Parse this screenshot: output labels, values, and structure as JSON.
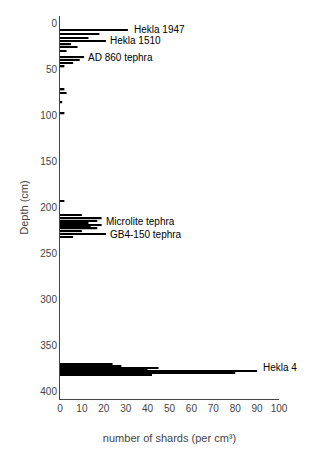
{
  "chart_data": {
    "type": "bar",
    "orientation": "horizontal",
    "xlabel": "number of shards (per cm³)",
    "ylabel": "Depth (cm)",
    "x": [
      7,
      12,
      16,
      19,
      23,
      26,
      30,
      37,
      40,
      43,
      47,
      72,
      76,
      86,
      98,
      193,
      208,
      212,
      215,
      217,
      219,
      221,
      223,
      226,
      229,
      232,
      370,
      372,
      374,
      376,
      378,
      380,
      382
    ],
    "values": [
      31,
      18,
      13,
      21,
      5,
      8,
      3,
      11,
      9,
      6,
      2,
      2,
      3,
      1,
      2,
      2,
      10,
      19,
      17,
      13,
      19,
      14,
      17,
      10,
      21,
      6,
      24,
      28,
      45,
      40,
      90,
      80,
      42
    ],
    "color": "#000000",
    "xlim": [
      0,
      100
    ],
    "xticks": [
      0,
      10,
      20,
      30,
      40,
      50,
      60,
      70,
      80,
      90,
      100
    ],
    "ylim": [
      408,
      -8
    ],
    "yticks": [
      0,
      50,
      100,
      150,
      200,
      250,
      300,
      350,
      400
    ],
    "grid": false,
    "annotations": [
      {
        "text": "Hekla 1947",
        "x": 33,
        "y": 7
      },
      {
        "text": "Hekla 1510",
        "x": 22,
        "y": 19
      },
      {
        "text": "AD 860 tephra",
        "x": 12,
        "y": 37
      },
      {
        "text": "Microlite tephra",
        "x": 20,
        "y": 215
      },
      {
        "text": "GB4-150 tephra",
        "x": 22,
        "y": 229
      },
      {
        "text": "Hekla 4",
        "x": 92,
        "y": 374
      }
    ]
  }
}
